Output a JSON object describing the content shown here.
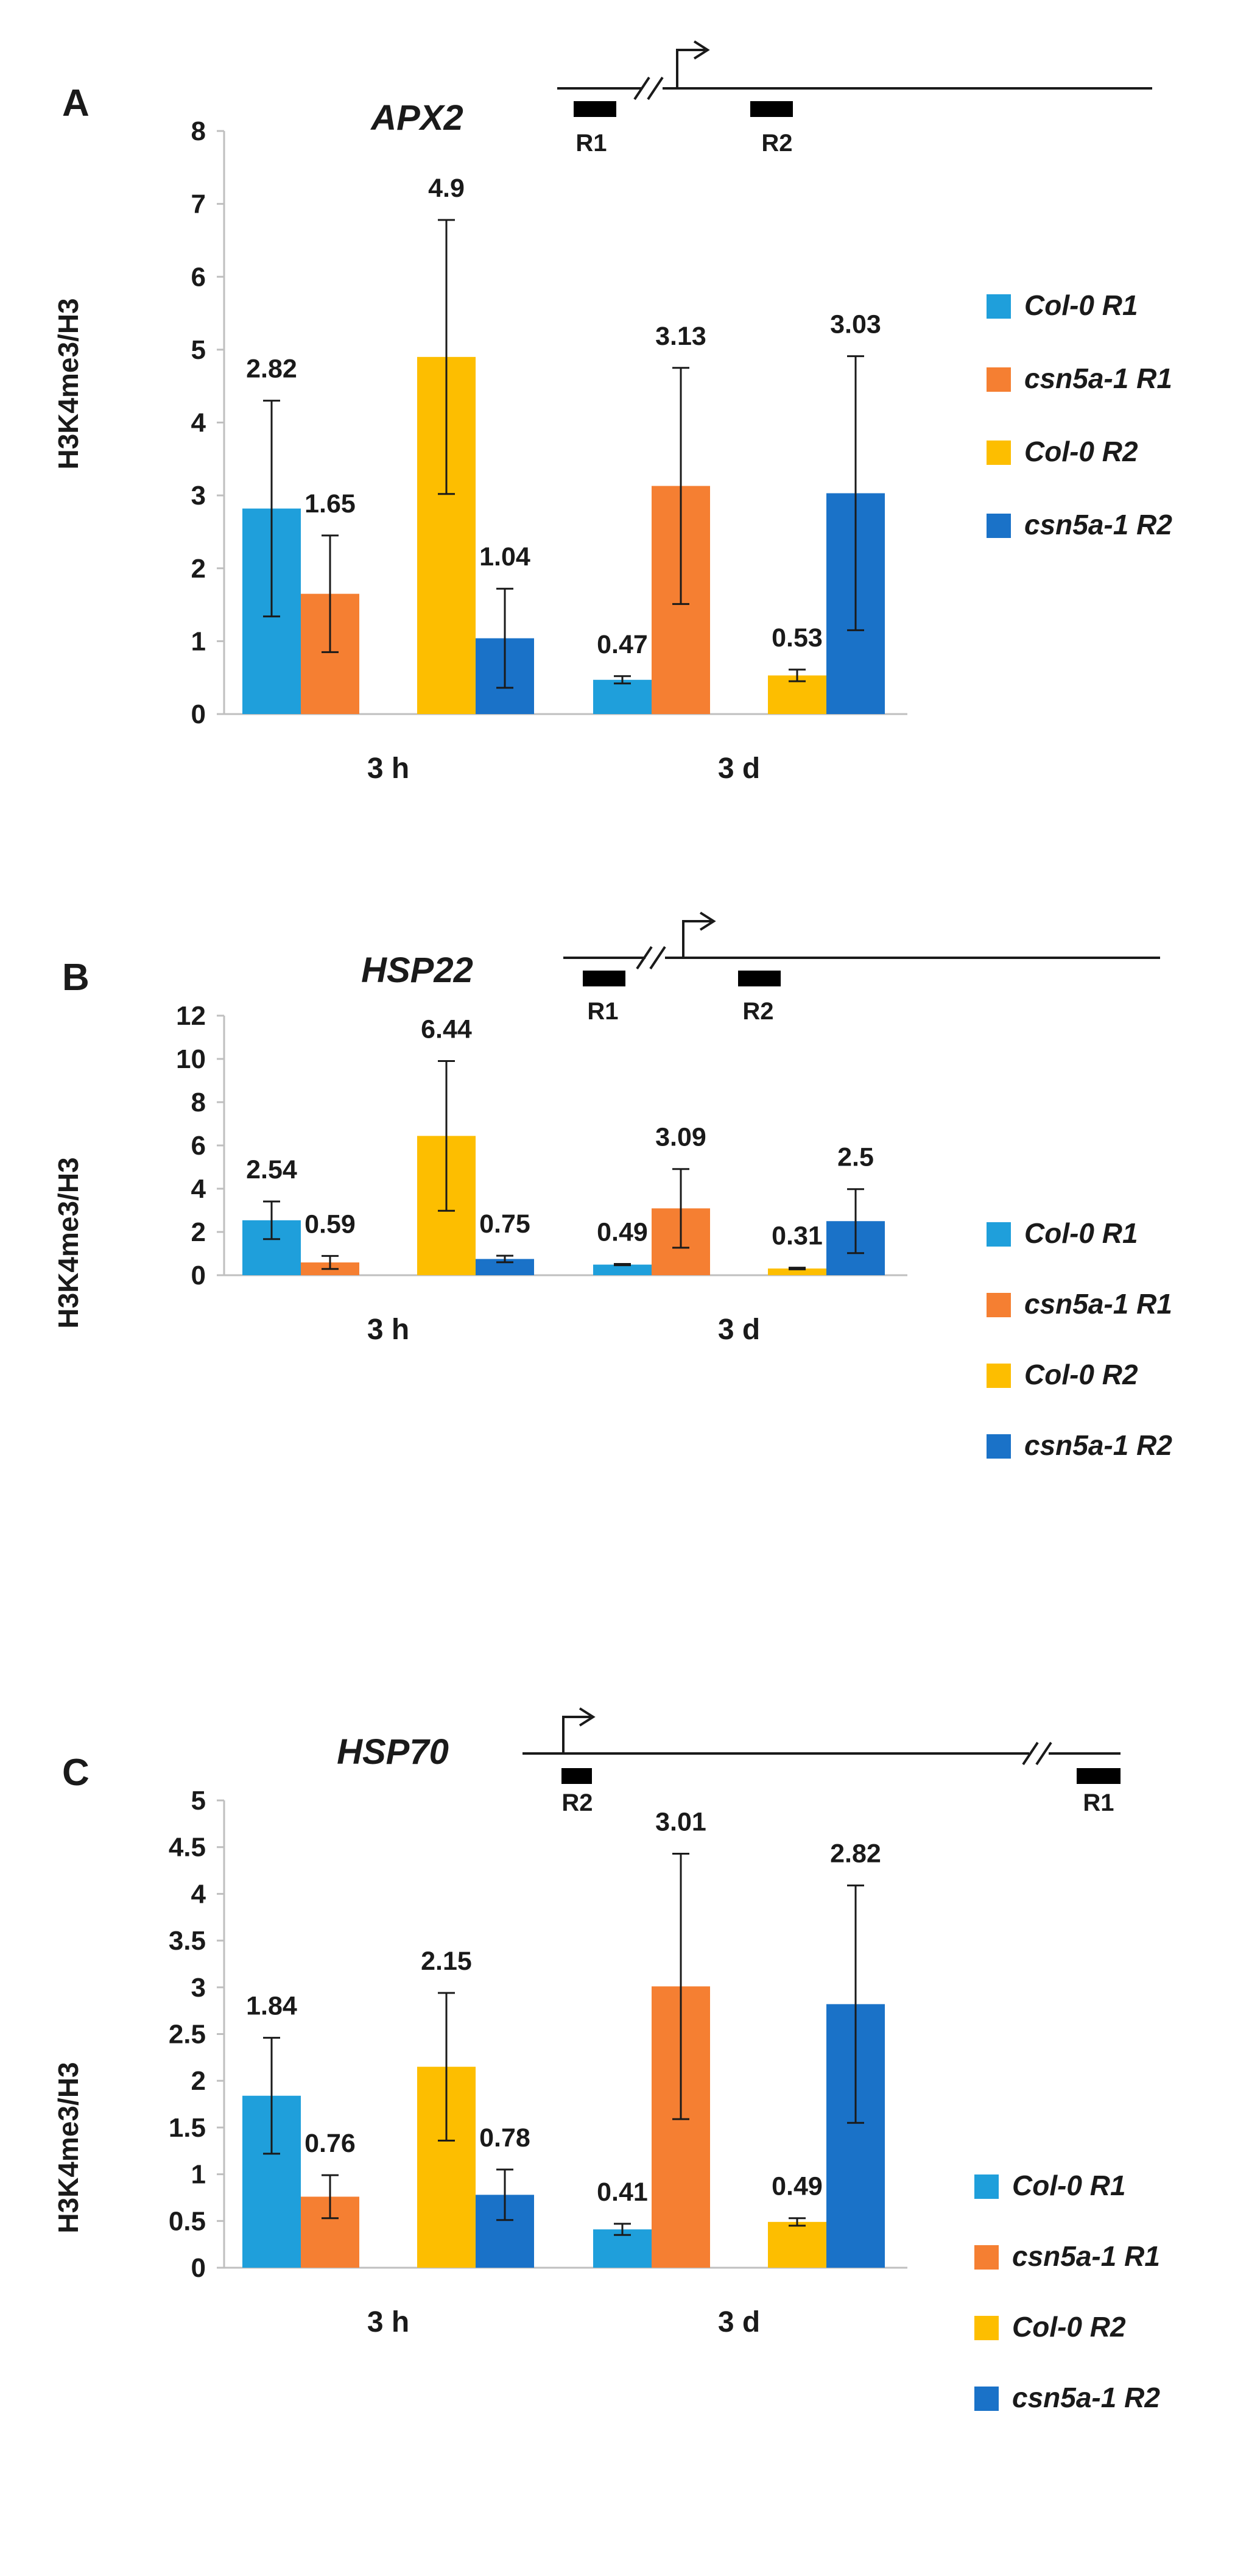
{
  "colors": {
    "col0_r1": "#1F9FDB",
    "csn5a1_r1": "#F57F32",
    "col0_r2": "#FDBE00",
    "csn5a1_r2": "#1A72C8",
    "axis": "#BFBFBF",
    "text": "#1a1a1a"
  },
  "chart_data": [
    {
      "panel": "A",
      "type": "bar",
      "title": "APX2",
      "ylabel": "H3K4me3/H3",
      "xlabel": "",
      "ylim": [
        0,
        8
      ],
      "yticks": [
        "0",
        "1",
        "2",
        "3",
        "4",
        "5",
        "6",
        "7",
        "8"
      ],
      "categories": [
        "3 h",
        "3 d"
      ],
      "series": [
        {
          "name": "Col-0 R1",
          "values": [
            2.82,
            0.47
          ],
          "errors": [
            1.48,
            0.05
          ],
          "labels": [
            "2.82",
            "0.47"
          ]
        },
        {
          "name": "csn5a-1 R1",
          "values": [
            1.65,
            3.13
          ],
          "errors": [
            0.8,
            1.62
          ],
          "labels": [
            "1.65",
            "3.13"
          ]
        },
        {
          "name": "Col-0 R2",
          "values": [
            4.9,
            0.53
          ],
          "errors": [
            1.88,
            0.08
          ],
          "labels": [
            "4.9",
            "0.53"
          ]
        },
        {
          "name": "csn5a-1 R2",
          "values": [
            1.04,
            3.03
          ],
          "errors": [
            0.68,
            1.88
          ],
          "labels": [
            "1.04",
            "3.03"
          ]
        }
      ],
      "gene_regions": [
        "R1",
        "R2"
      ]
    },
    {
      "panel": "B",
      "type": "bar",
      "title": "HSP22",
      "ylabel": "H3K4me3/H3",
      "xlabel": "",
      "ylim": [
        0,
        12
      ],
      "yticks": [
        "0",
        "2",
        "4",
        "6",
        "8",
        "10",
        "12"
      ],
      "categories": [
        "3 h",
        "3 d"
      ],
      "series": [
        {
          "name": "Col-0 R1",
          "values": [
            2.54,
            0.49
          ],
          "errors": [
            0.87,
            0.03
          ],
          "labels": [
            "2.54",
            "0.49"
          ]
        },
        {
          "name": "csn5a-1 R1",
          "values": [
            0.59,
            3.09
          ],
          "errors": [
            0.3,
            1.82
          ],
          "labels": [
            "0.59",
            "3.09"
          ]
        },
        {
          "name": "Col-0 R2",
          "values": [
            6.44,
            0.31
          ],
          "errors": [
            3.46,
            0.04
          ],
          "labels": [
            "6.44",
            "0.31"
          ]
        },
        {
          "name": "csn5a-1 R2",
          "values": [
            0.75,
            2.5
          ],
          "errors": [
            0.15,
            1.48
          ],
          "labels": [
            "0.75",
            "2.5"
          ]
        }
      ],
      "gene_regions": [
        "R1",
        "R2"
      ]
    },
    {
      "panel": "C",
      "type": "bar",
      "title": "HSP70",
      "ylabel": "H3K4me3/H3",
      "xlabel": "",
      "ylim": [
        0,
        5
      ],
      "yticks": [
        "0",
        "0.5",
        "1",
        "1.5",
        "2",
        "2.5",
        "3",
        "3.5",
        "4",
        "4.5",
        "5"
      ],
      "categories": [
        "3 h",
        "3 d"
      ],
      "series": [
        {
          "name": "Col-0 R1",
          "values": [
            1.84,
            0.41
          ],
          "errors": [
            0.62,
            0.06
          ],
          "labels": [
            "1.84",
            "0.41"
          ]
        },
        {
          "name": "csn5a-1 R1",
          "values": [
            0.76,
            3.01
          ],
          "errors": [
            0.23,
            1.42
          ],
          "labels": [
            "0.76",
            "3.01"
          ]
        },
        {
          "name": "Col-0 R2",
          "values": [
            2.15,
            0.49
          ],
          "errors": [
            0.79,
            0.04
          ],
          "labels": [
            "2.15",
            "0.49"
          ]
        },
        {
          "name": "csn5a-1 R2",
          "values": [
            0.78,
            2.82
          ],
          "errors": [
            0.27,
            1.27
          ],
          "labels": [
            "0.78",
            "2.82"
          ]
        }
      ],
      "gene_regions": [
        "R2",
        "R1"
      ]
    }
  ]
}
